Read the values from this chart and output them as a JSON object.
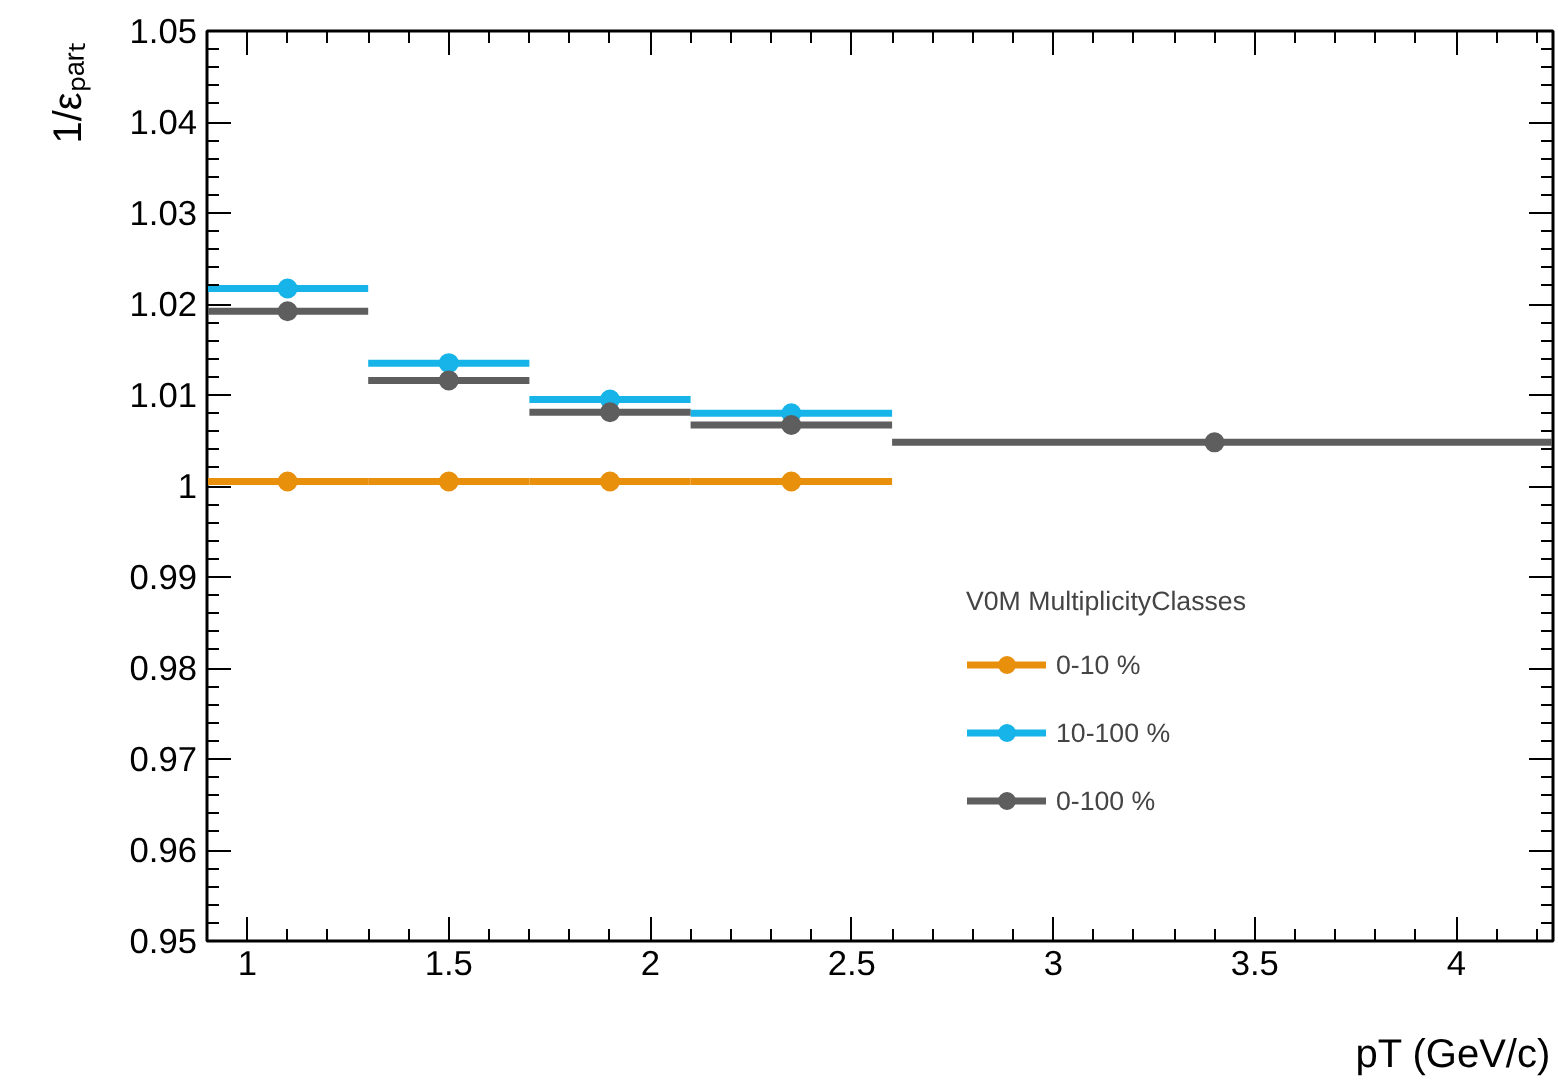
{
  "chart_data": {
    "type": "scatter",
    "xlabel": "pT (GeV/c)",
    "ylabel": "1/εₚₐᵣₜ",
    "legend_title": "V0M MultiplicityClasses",
    "xlim": [
      0.9,
      4.24
    ],
    "xticks": [
      1,
      1.5,
      2,
      2.5,
      3,
      3.5,
      4
    ],
    "ylim": [
      0.95,
      1.05
    ],
    "yticks": [
      0.95,
      0.96,
      0.97,
      0.98,
      0.99,
      1,
      1.01,
      1.02,
      1.03,
      1.04,
      1.05
    ],
    "marker": "circle",
    "legend": "right",
    "grid": false,
    "series": [
      {
        "name": "0-10 %",
        "color": "#e8900c",
        "x": [
          1.1,
          1.5,
          1.9,
          2.35
        ],
        "values": [
          1.0005,
          1.0005,
          1.0005,
          1.0005
        ],
        "xerrors": [
          [
            0.9,
            1.3
          ],
          [
            1.3,
            1.7
          ],
          [
            1.7,
            2.1
          ],
          [
            2.1,
            2.6
          ]
        ]
      },
      {
        "name": "10-100 %",
        "color": "#16b4e8",
        "x": [
          1.1,
          1.5,
          1.9,
          2.35
        ],
        "values": [
          1.0217,
          1.0135,
          1.0095,
          1.008
        ],
        "xerrors": [
          [
            0.9,
            1.3
          ],
          [
            1.3,
            1.7
          ],
          [
            1.7,
            2.1
          ],
          [
            2.1,
            2.6
          ]
        ]
      },
      {
        "name": "0-100 %",
        "color": "#5e5e5e",
        "x": [
          1.1,
          1.5,
          1.9,
          2.35,
          3.4
        ],
        "values": [
          1.0192,
          1.0116,
          1.0081,
          1.0067,
          1.0048
        ],
        "xerrors": [
          [
            0.9,
            1.3
          ],
          [
            1.3,
            1.7
          ],
          [
            1.7,
            2.1
          ],
          [
            2.1,
            2.6
          ],
          [
            2.6,
            4.24
          ]
        ]
      }
    ]
  }
}
